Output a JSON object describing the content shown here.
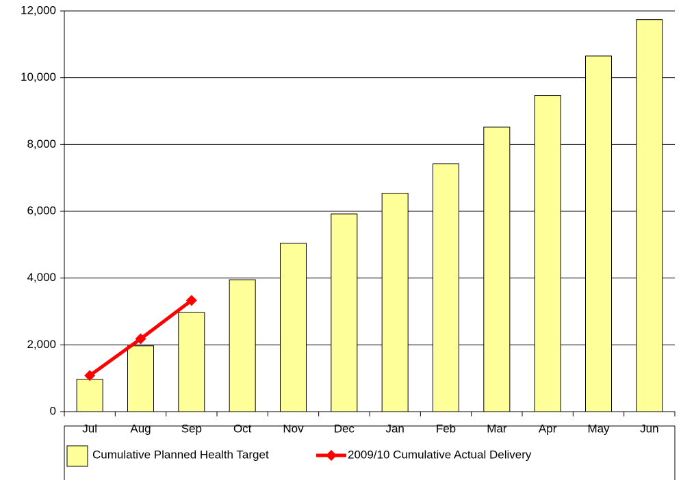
{
  "chart_data": {
    "type": "bar",
    "categories": [
      "Jul",
      "Aug",
      "Sep",
      "Oct",
      "Nov",
      "Dec",
      "Jan",
      "Feb",
      "Mar",
      "Apr",
      "May",
      "Jun"
    ],
    "series": [
      {
        "name": "Cumulative Planned Health Target",
        "type": "bar",
        "color": "#ffff99",
        "values": [
          970,
          1970,
          2970,
          3950,
          5040,
          5920,
          6540,
          7420,
          8520,
          9470,
          10650,
          11740
        ]
      },
      {
        "name": "2009/10 Cumulative Actual Delivery",
        "type": "line",
        "color": "#ff0000",
        "values": [
          1080,
          2180,
          3330,
          null,
          null,
          null,
          null,
          null,
          null,
          null,
          null,
          null
        ]
      }
    ],
    "ylim": [
      0,
      12000
    ],
    "yticks": [
      0,
      {
        "value": 2000,
        "label": "2,000"
      },
      {
        "value": 4000,
        "label": "4,000"
      },
      {
        "value": 6000,
        "label": "6,000"
      },
      {
        "value": 8000,
        "label": "8,000"
      },
      {
        "value": 10000,
        "label": "10,000"
      },
      {
        "value": 12000,
        "label": "12,000"
      }
    ],
    "grid": true,
    "legend": "bottom"
  }
}
